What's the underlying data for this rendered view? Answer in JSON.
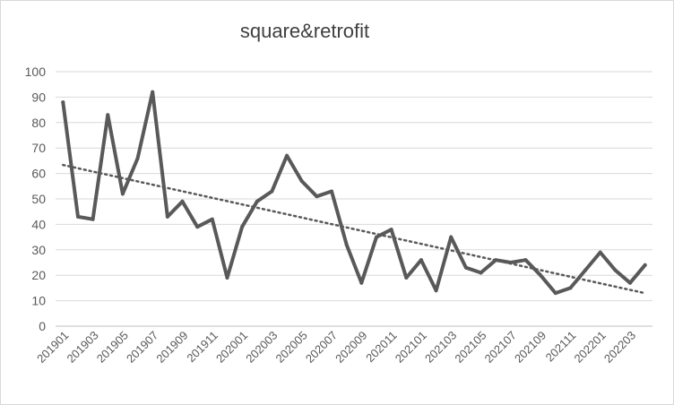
{
  "chart_data": {
    "type": "line",
    "title": "square&retrofit",
    "xlabel": "",
    "ylabel": "",
    "ylim": [
      0,
      100
    ],
    "yticks": [
      0,
      10,
      20,
      30,
      40,
      50,
      60,
      70,
      80,
      90,
      100
    ],
    "grid": true,
    "legend": "none",
    "x": [
      "201901",
      "201902",
      "201903",
      "201904",
      "201905",
      "201906",
      "201907",
      "201908",
      "201909",
      "201910",
      "201911",
      "201912",
      "202001",
      "202002",
      "202003",
      "202004",
      "202005",
      "202006",
      "202007",
      "202008",
      "202009",
      "202010",
      "202011",
      "202012",
      "202101",
      "202102",
      "202103",
      "202104",
      "202105",
      "202106",
      "202107",
      "202108",
      "202109",
      "202110",
      "202111",
      "202112",
      "202201",
      "202202",
      "202203",
      "202204"
    ],
    "xtick_labels": [
      "201901",
      "201903",
      "201905",
      "201907",
      "201909",
      "201911",
      "202001",
      "202003",
      "202005",
      "202007",
      "202009",
      "202011",
      "202101",
      "202103",
      "202105",
      "202107",
      "202109",
      "202111",
      "202201",
      "202203"
    ],
    "series": [
      {
        "values": [
          88,
          43,
          42,
          83,
          52,
          66,
          92,
          43,
          49,
          39,
          42,
          19,
          39,
          49,
          53,
          67,
          57,
          51,
          53,
          32,
          17,
          35,
          38,
          19,
          26,
          14,
          35,
          23,
          21,
          26,
          25,
          26,
          20,
          13,
          15,
          22,
          29,
          22,
          17,
          24
        ],
        "color": "#595959"
      }
    ],
    "trendline": {
      "type": "linear",
      "style": "dotted",
      "color": "#595959"
    }
  }
}
